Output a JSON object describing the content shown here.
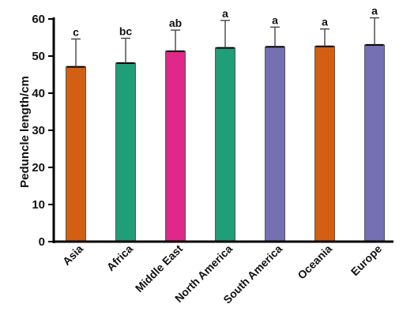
{
  "chart_data": {
    "type": "bar",
    "title": "",
    "xlabel": "",
    "ylabel": "Peduncle length/cm",
    "ylim": [
      0,
      60
    ],
    "yticks": [
      0,
      10,
      20,
      30,
      40,
      50,
      60
    ],
    "grid": false,
    "legend": "none",
    "categories": [
      "Asia",
      "Africa",
      "Middle East",
      "North America",
      "South America",
      "Oceania",
      "Europe"
    ],
    "values": [
      47.1,
      48.1,
      51.3,
      52.2,
      52.5,
      52.6,
      53.0
    ],
    "error_upper": [
      54.6,
      54.8,
      57.0,
      59.6,
      57.8,
      57.3,
      60.3
    ],
    "significance": [
      "c",
      "bc",
      "ab",
      "a",
      "a",
      "a",
      "a"
    ],
    "colors": [
      "#d35f12",
      "#1f9e77",
      "#e0288a",
      "#1f9e77",
      "#7570b3",
      "#d35f12",
      "#7570b3"
    ]
  }
}
